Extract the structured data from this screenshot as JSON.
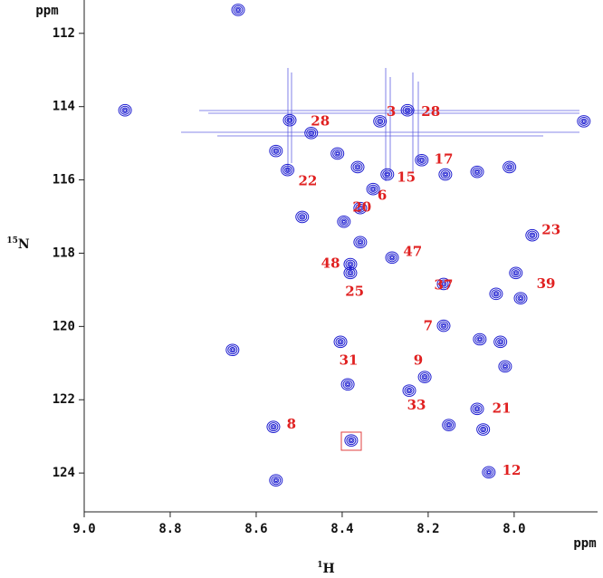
{
  "chart_data": {
    "type": "scatter",
    "x_label": {
      "sup": "1",
      "text": "H"
    },
    "y_label": {
      "sup": "15",
      "text": "N"
    },
    "x_unit": "ppm",
    "y_unit": "ppm",
    "xlim": [
      9.0,
      7.806
    ],
    "ylim": [
      111.09,
      125.06
    ],
    "xticks": [
      {
        "value": 9.0,
        "label": "9.0"
      },
      8.8,
      8.6,
      8.4,
      8.2,
      {
        "value": 8.0,
        "label": "8.0"
      }
    ],
    "yticks": [
      112,
      114,
      116,
      118,
      120,
      122,
      124
    ],
    "color": "#1f1fd0",
    "label_color": "#e02020",
    "x": [
      8.642,
      8.905,
      7.838,
      8.522,
      8.312,
      8.248,
      8.472,
      8.554,
      8.527,
      8.411,
      8.364,
      8.295,
      8.215,
      8.16,
      8.086,
      8.011,
      8.328,
      8.358,
      8.493,
      8.396,
      8.358,
      7.958,
      8.284,
      8.381,
      8.381,
      8.164,
      7.996,
      8.042,
      7.985,
      8.164,
      8.08,
      8.032,
      8.655,
      8.404,
      8.021,
      8.387,
      8.208,
      8.244,
      8.086,
      8.152,
      8.072,
      8.56,
      8.379,
      8.059,
      8.554
    ],
    "y": [
      111.36,
      114.1,
      114.4,
      114.37,
      114.4,
      114.1,
      114.72,
      115.21,
      115.73,
      115.28,
      115.65,
      115.85,
      115.46,
      115.85,
      115.78,
      115.65,
      116.25,
      116.77,
      117.01,
      117.14,
      117.7,
      117.51,
      118.12,
      118.3,
      118.54,
      118.84,
      118.54,
      119.11,
      119.23,
      119.98,
      120.35,
      120.42,
      120.64,
      120.42,
      121.09,
      121.58,
      121.38,
      121.75,
      122.25,
      122.69,
      122.81,
      122.74,
      123.11,
      123.98,
      124.2
    ],
    "annotations": [
      {
        "text": "28",
        "x": 8.451,
        "y": 114.42
      },
      {
        "text": "3",
        "x": 8.286,
        "y": 114.15
      },
      {
        "text": "28",
        "x": 8.194,
        "y": 114.15
      },
      {
        "text": "17",
        "x": 8.164,
        "y": 115.46
      },
      {
        "text": "15",
        "x": 8.251,
        "y": 115.95
      },
      {
        "text": "22",
        "x": 8.48,
        "y": 116.05
      },
      {
        "text": "6",
        "x": 8.307,
        "y": 116.44
      },
      {
        "text": "20",
        "x": 8.354,
        "y": 116.77
      },
      {
        "text": "23",
        "x": 7.914,
        "y": 117.38
      },
      {
        "text": "47",
        "x": 8.236,
        "y": 117.98
      },
      {
        "text": "48",
        "x": 8.427,
        "y": 118.3
      },
      {
        "text": "37",
        "x": 8.164,
        "y": 118.89
      },
      {
        "text": "39",
        "x": 7.926,
        "y": 118.86
      },
      {
        "text": "25",
        "x": 8.371,
        "y": 119.06
      },
      {
        "text": "7",
        "x": 8.2,
        "y": 120.0
      },
      {
        "text": "9",
        "x": 8.223,
        "y": 120.94
      },
      {
        "text": "31",
        "x": 8.385,
        "y": 120.94
      },
      {
        "text": "33",
        "x": 8.227,
        "y": 122.17
      },
      {
        "text": "21",
        "x": 8.029,
        "y": 122.25
      },
      {
        "text": "8",
        "x": 8.518,
        "y": 122.69
      },
      {
        "text": "12",
        "x": 8.006,
        "y": 123.95
      }
    ]
  }
}
